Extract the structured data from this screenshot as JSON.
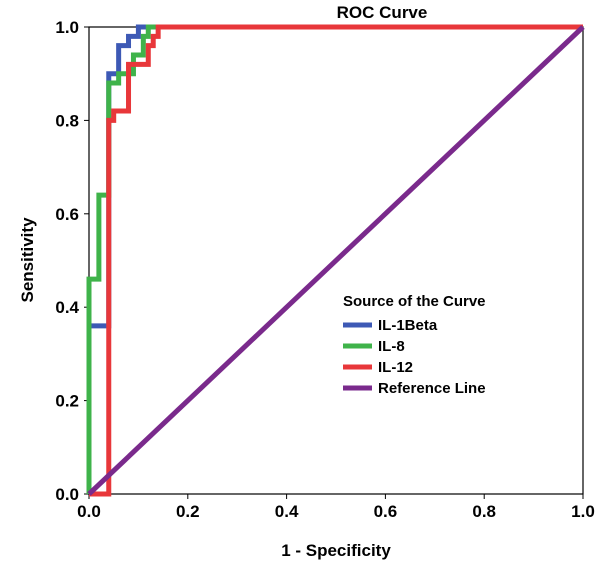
{
  "chart_data": {
    "type": "line",
    "title": "ROC Curve",
    "xlabel": "1 - Specificity",
    "ylabel": "Sensitivity",
    "xlim": [
      0,
      1
    ],
    "ylim": [
      0,
      1
    ],
    "x_ticks": [
      "0.0",
      "0.2",
      "0.4",
      "0.6",
      "0.8",
      "1.0"
    ],
    "y_ticks": [
      "0.0",
      "0.2",
      "0.4",
      "0.6",
      "0.8",
      "1.0"
    ],
    "grid": false,
    "legend": {
      "title": "Source of the Curve",
      "placement": "center-right"
    },
    "series": [
      {
        "name": "IL-1Beta",
        "color": "#3d59b5",
        "x": [
          0.0,
          0.0,
          0.01,
          0.01,
          0.04,
          0.04,
          0.06,
          0.06,
          0.08,
          0.08,
          0.1,
          0.1,
          1.0
        ],
        "y": [
          0.0,
          0.36,
          0.36,
          0.36,
          0.36,
          0.9,
          0.9,
          0.96,
          0.96,
          0.98,
          0.98,
          1.0,
          1.0
        ]
      },
      {
        "name": "IL-8",
        "color": "#3fb34a",
        "x": [
          0.0,
          0.0,
          0.02,
          0.02,
          0.04,
          0.04,
          0.06,
          0.06,
          0.09,
          0.09,
          0.11,
          0.11,
          0.12,
          0.12,
          1.0
        ],
        "y": [
          0.0,
          0.46,
          0.46,
          0.64,
          0.64,
          0.88,
          0.88,
          0.9,
          0.9,
          0.94,
          0.94,
          0.98,
          0.98,
          1.0,
          1.0
        ]
      },
      {
        "name": "IL-12",
        "color": "#e8373a",
        "x": [
          0.0,
          0.04,
          0.04,
          0.05,
          0.05,
          0.07,
          0.07,
          0.08,
          0.08,
          0.12,
          0.12,
          0.13,
          0.13,
          0.14,
          0.14,
          1.0
        ],
        "y": [
          0.0,
          0.0,
          0.8,
          0.8,
          0.82,
          0.82,
          0.82,
          0.82,
          0.92,
          0.92,
          0.96,
          0.96,
          0.98,
          0.98,
          1.0,
          1.0
        ]
      },
      {
        "name": "Reference Line",
        "color": "#7a2a8c",
        "x": [
          0.0,
          1.0
        ],
        "y": [
          0.0,
          1.0
        ]
      }
    ]
  }
}
